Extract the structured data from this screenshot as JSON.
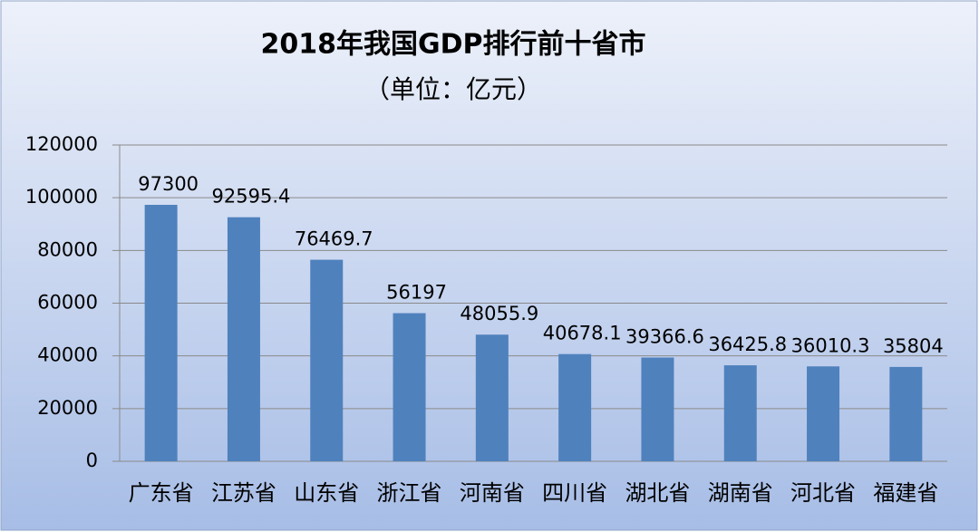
{
  "chart_data": {
    "type": "bar",
    "title": "2018年我国GDP排行前十省市",
    "subtitle": "（单位：亿元）",
    "categories": [
      "广东省",
      "江苏省",
      "山东省",
      "浙江省",
      "河南省",
      "四川省",
      "湖北省",
      "湖南省",
      "河北省",
      "福建省"
    ],
    "values": [
      97300,
      92595.4,
      76469.7,
      56197,
      48055.9,
      40678.1,
      39366.6,
      36425.8,
      36010.3,
      35804
    ],
    "color": "#4f81bd",
    "ylim": [
      0,
      120000
    ],
    "yticks": [
      0,
      20000,
      40000,
      60000,
      80000,
      100000,
      120000
    ],
    "grid": true
  }
}
